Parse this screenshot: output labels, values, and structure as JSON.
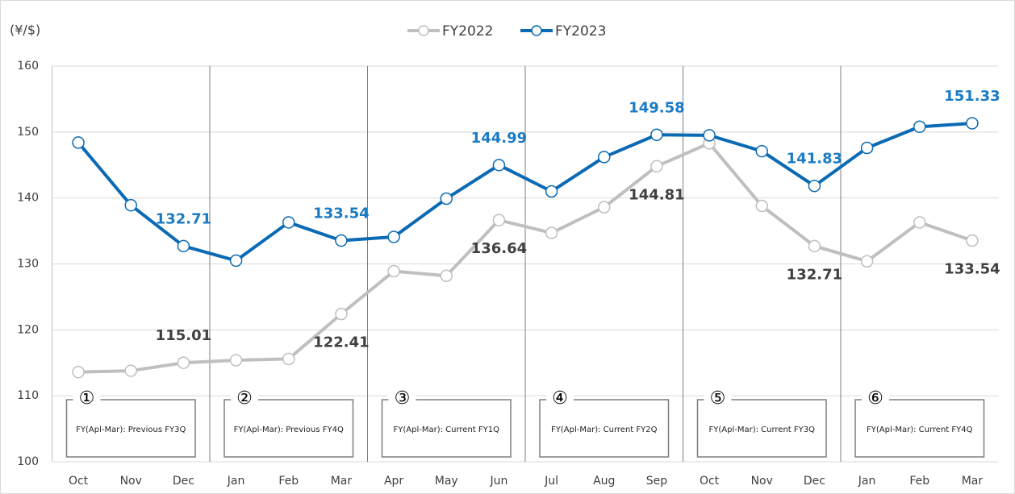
{
  "chart_data": {
    "type": "line",
    "y_label": "(¥/$)",
    "categories": [
      "Oct",
      "Nov",
      "Dec",
      "Jan",
      "Feb",
      "Mar",
      "Apr",
      "May",
      "Jun",
      "Jul",
      "Aug",
      "Sep",
      "Oct",
      "Nov",
      "Dec",
      "Jan",
      "Feb",
      "Mar"
    ],
    "series": [
      {
        "name": "FY2022",
        "color": "#bfbfbf",
        "label_color": "#404040",
        "values": [
          113.6,
          113.8,
          115.01,
          115.4,
          115.6,
          122.41,
          128.9,
          128.2,
          136.64,
          134.7,
          138.6,
          144.81,
          148.3,
          138.8,
          132.71,
          130.4,
          136.3,
          133.54
        ],
        "label_indices": [
          2,
          5,
          8,
          11,
          14,
          17
        ],
        "label_positions": [
          "above",
          "below",
          "below",
          "below",
          "below",
          "below"
        ]
      },
      {
        "name": "FY2023",
        "color": "#0a6ab4",
        "label_color": "#1a7bc4",
        "values": [
          148.4,
          138.9,
          132.71,
          130.5,
          136.3,
          133.54,
          134.1,
          139.9,
          144.99,
          141.0,
          146.2,
          149.58,
          149.5,
          147.1,
          141.83,
          147.6,
          150.8,
          151.33
        ],
        "label_indices": [
          2,
          5,
          8,
          11,
          14,
          17
        ],
        "label_positions": [
          "above",
          "above",
          "above",
          "above",
          "above",
          "above"
        ]
      }
    ],
    "ylim": [
      100,
      160
    ],
    "yticks": [
      100,
      110,
      120,
      130,
      140,
      150,
      160
    ],
    "grid": true,
    "dividers": [
      3,
      6,
      9,
      12,
      15
    ],
    "annotations": [
      {
        "number": "①",
        "text": "FY(Apl-Mar): Previous FY3Q"
      },
      {
        "number": "②",
        "text": "FY(Apl-Mar): Previous FY4Q"
      },
      {
        "number": "③",
        "text": "FY(Apl-Mar): Current FY1Q"
      },
      {
        "number": "④",
        "text": "FY(Apl-Mar): Current FY2Q"
      },
      {
        "number": "⑤",
        "text": "FY(Apl-Mar): Current FY3Q"
      },
      {
        "number": "⑥",
        "text": "FY(Apl-Mar): Current FY4Q"
      }
    ]
  }
}
